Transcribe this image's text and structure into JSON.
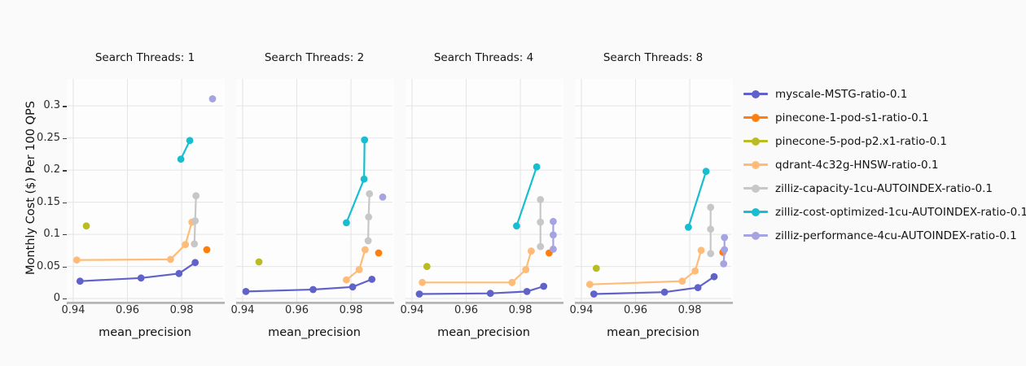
{
  "chart_data": {
    "type": "line",
    "title": "",
    "xlabel": "mean_precision",
    "ylabel": "Monthly Cost ($) Per 100 QPS",
    "xlim": [
      0.9376,
      0.9953
    ],
    "ylim": [
      -0.005,
      0.342
    ],
    "grid": true,
    "legend_position": "right",
    "x_ticks": {
      "values": [
        0.94,
        0.96,
        0.98
      ],
      "labels": [
        "0.94",
        "0.96",
        "0.98"
      ]
    },
    "y_ticks": {
      "values": [
        0,
        0.05,
        0.1,
        0.15,
        0.2,
        0.25,
        0.3
      ],
      "labels": [
        "0",
        "0.05",
        "0.1",
        "0.15",
        "0.2",
        "0.25",
        "0.3"
      ]
    },
    "legend": [
      {
        "label": "myscale-MSTG-ratio-0.1",
        "color": "#6062c9"
      },
      {
        "label": "pinecone-1-pod-s1-ratio-0.1",
        "color": "#ff7f0e"
      },
      {
        "label": "pinecone-5-pod-p2.x1-ratio-0.1",
        "color": "#b9bd22"
      },
      {
        "label": "qdrant-4c32g-HNSW-ratio-0.1",
        "color": "#ffbb78"
      },
      {
        "label": "zilliz-capacity-1cu-AUTOINDEX-ratio-0.1",
        "color": "#c7c7c7"
      },
      {
        "label": "zilliz-cost-optimized-1cu-AUTOINDEX-ratio-0.1",
        "color": "#17becf"
      },
      {
        "label": "zilliz-performance-4cu-AUTOINDEX-ratio-0.1",
        "color": "#a5a3e0"
      }
    ],
    "facets": [
      {
        "title": "Search Threads: 1",
        "series": [
          {
            "name": "myscale-MSTG-ratio-0.1",
            "points": [
              [
                0.9425,
                0.027
              ],
              [
                0.965,
                0.032
              ],
              [
                0.979,
                0.039
              ],
              [
                0.985,
                0.056
              ]
            ]
          },
          {
            "name": "pinecone-1-pod-s1-ratio-0.1",
            "points": [
              [
                0.9893,
                0.076
              ]
            ]
          },
          {
            "name": "pinecone-5-pod-p2.x1-ratio-0.1",
            "points": [
              [
                0.9448,
                0.113
              ]
            ]
          },
          {
            "name": "qdrant-4c32g-HNSW-ratio-0.1",
            "points": [
              [
                0.9413,
                0.06
              ],
              [
                0.9759,
                0.061
              ],
              [
                0.9814,
                0.084
              ],
              [
                0.9838,
                0.119
              ]
            ]
          },
          {
            "name": "zilliz-capacity-1cu-AUTOINDEX-ratio-0.1",
            "points": [
              [
                0.9847,
                0.085
              ],
              [
                0.985,
                0.121
              ],
              [
                0.9853,
                0.16
              ]
            ]
          },
          {
            "name": "zilliz-cost-optimized-1cu-AUTOINDEX-ratio-0.1",
            "points": [
              [
                0.9797,
                0.217
              ],
              [
                0.983,
                0.246
              ]
            ]
          },
          {
            "name": "zilliz-performance-4cu-AUTOINDEX-ratio-0.1",
            "points": [
              [
                0.9914,
                0.311
              ]
            ]
          }
        ]
      },
      {
        "title": "Search Threads: 2",
        "series": [
          {
            "name": "myscale-MSTG-ratio-0.1",
            "points": [
              [
                0.9412,
                0.011
              ],
              [
                0.966,
                0.014
              ],
              [
                0.9806,
                0.018
              ],
              [
                0.9877,
                0.03
              ]
            ]
          },
          {
            "name": "pinecone-1-pod-s1-ratio-0.1",
            "points": [
              [
                0.9902,
                0.071
              ]
            ]
          },
          {
            "name": "pinecone-5-pod-p2.x1-ratio-0.1",
            "points": [
              [
                0.946,
                0.057
              ]
            ]
          },
          {
            "name": "qdrant-4c32g-HNSW-ratio-0.1",
            "points": [
              [
                0.9783,
                0.029
              ],
              [
                0.983,
                0.045
              ],
              [
                0.9852,
                0.076
              ]
            ]
          },
          {
            "name": "zilliz-capacity-1cu-AUTOINDEX-ratio-0.1",
            "points": [
              [
                0.9863,
                0.09
              ],
              [
                0.9865,
                0.127
              ],
              [
                0.9868,
                0.163
              ]
            ]
          },
          {
            "name": "zilliz-cost-optimized-1cu-AUTOINDEX-ratio-0.1",
            "points": [
              [
                0.9783,
                0.118
              ],
              [
                0.9848,
                0.186
              ],
              [
                0.985,
                0.247
              ]
            ]
          },
          {
            "name": "zilliz-performance-4cu-AUTOINDEX-ratio-0.1",
            "points": [
              [
                0.9917,
                0.158
              ]
            ]
          }
        ]
      },
      {
        "title": "Search Threads: 4",
        "series": [
          {
            "name": "myscale-MSTG-ratio-0.1",
            "points": [
              [
                0.9427,
                0.007
              ],
              [
                0.9689,
                0.008
              ],
              [
                0.9824,
                0.011
              ],
              [
                0.9886,
                0.019
              ]
            ]
          },
          {
            "name": "pinecone-1-pod-s1-ratio-0.1",
            "points": [
              [
                0.9906,
                0.071
              ]
            ]
          },
          {
            "name": "pinecone-5-pod-p2.x1-ratio-0.1",
            "points": [
              [
                0.9455,
                0.05
              ]
            ]
          },
          {
            "name": "qdrant-4c32g-HNSW-ratio-0.1",
            "points": [
              [
                0.9438,
                0.025
              ],
              [
                0.9769,
                0.025
              ],
              [
                0.982,
                0.045
              ],
              [
                0.984,
                0.074
              ]
            ]
          },
          {
            "name": "zilliz-capacity-1cu-AUTOINDEX-ratio-0.1",
            "points": [
              [
                0.9874,
                0.081
              ],
              [
                0.9874,
                0.119
              ],
              [
                0.9874,
                0.154
              ]
            ]
          },
          {
            "name": "zilliz-cost-optimized-1cu-AUTOINDEX-ratio-0.1",
            "points": [
              [
                0.9786,
                0.113
              ],
              [
                0.986,
                0.205
              ]
            ]
          },
          {
            "name": "zilliz-performance-4cu-AUTOINDEX-ratio-0.1",
            "points": [
              [
                0.9921,
                0.077
              ],
              [
                0.9921,
                0.099
              ],
              [
                0.9921,
                0.12
              ]
            ]
          }
        ]
      },
      {
        "title": "Search Threads: 8",
        "series": [
          {
            "name": "myscale-MSTG-ratio-0.1",
            "points": [
              [
                0.9446,
                0.007
              ],
              [
                0.9707,
                0.01
              ],
              [
                0.983,
                0.017
              ],
              [
                0.989,
                0.034
              ]
            ]
          },
          {
            "name": "pinecone-1-pod-s1-ratio-0.1",
            "points": [
              [
                0.9922,
                0.072
              ]
            ]
          },
          {
            "name": "pinecone-5-pod-p2.x1-ratio-0.1",
            "points": [
              [
                0.9455,
                0.047
              ]
            ]
          },
          {
            "name": "qdrant-4c32g-HNSW-ratio-0.1",
            "points": [
              [
                0.9431,
                0.022
              ],
              [
                0.9772,
                0.027
              ],
              [
                0.982,
                0.043
              ],
              [
                0.9842,
                0.075
              ]
            ]
          },
          {
            "name": "zilliz-capacity-1cu-AUTOINDEX-ratio-0.1",
            "points": [
              [
                0.9877,
                0.07
              ],
              [
                0.9877,
                0.108
              ],
              [
                0.9877,
                0.142
              ]
            ]
          },
          {
            "name": "zilliz-cost-optimized-1cu-AUTOINDEX-ratio-0.1",
            "points": [
              [
                0.9795,
                0.111
              ],
              [
                0.986,
                0.198
              ]
            ]
          },
          {
            "name": "zilliz-performance-4cu-AUTOINDEX-ratio-0.1",
            "points": [
              [
                0.9925,
                0.054
              ],
              [
                0.9928,
                0.076
              ],
              [
                0.9928,
                0.095
              ]
            ]
          }
        ]
      }
    ]
  }
}
